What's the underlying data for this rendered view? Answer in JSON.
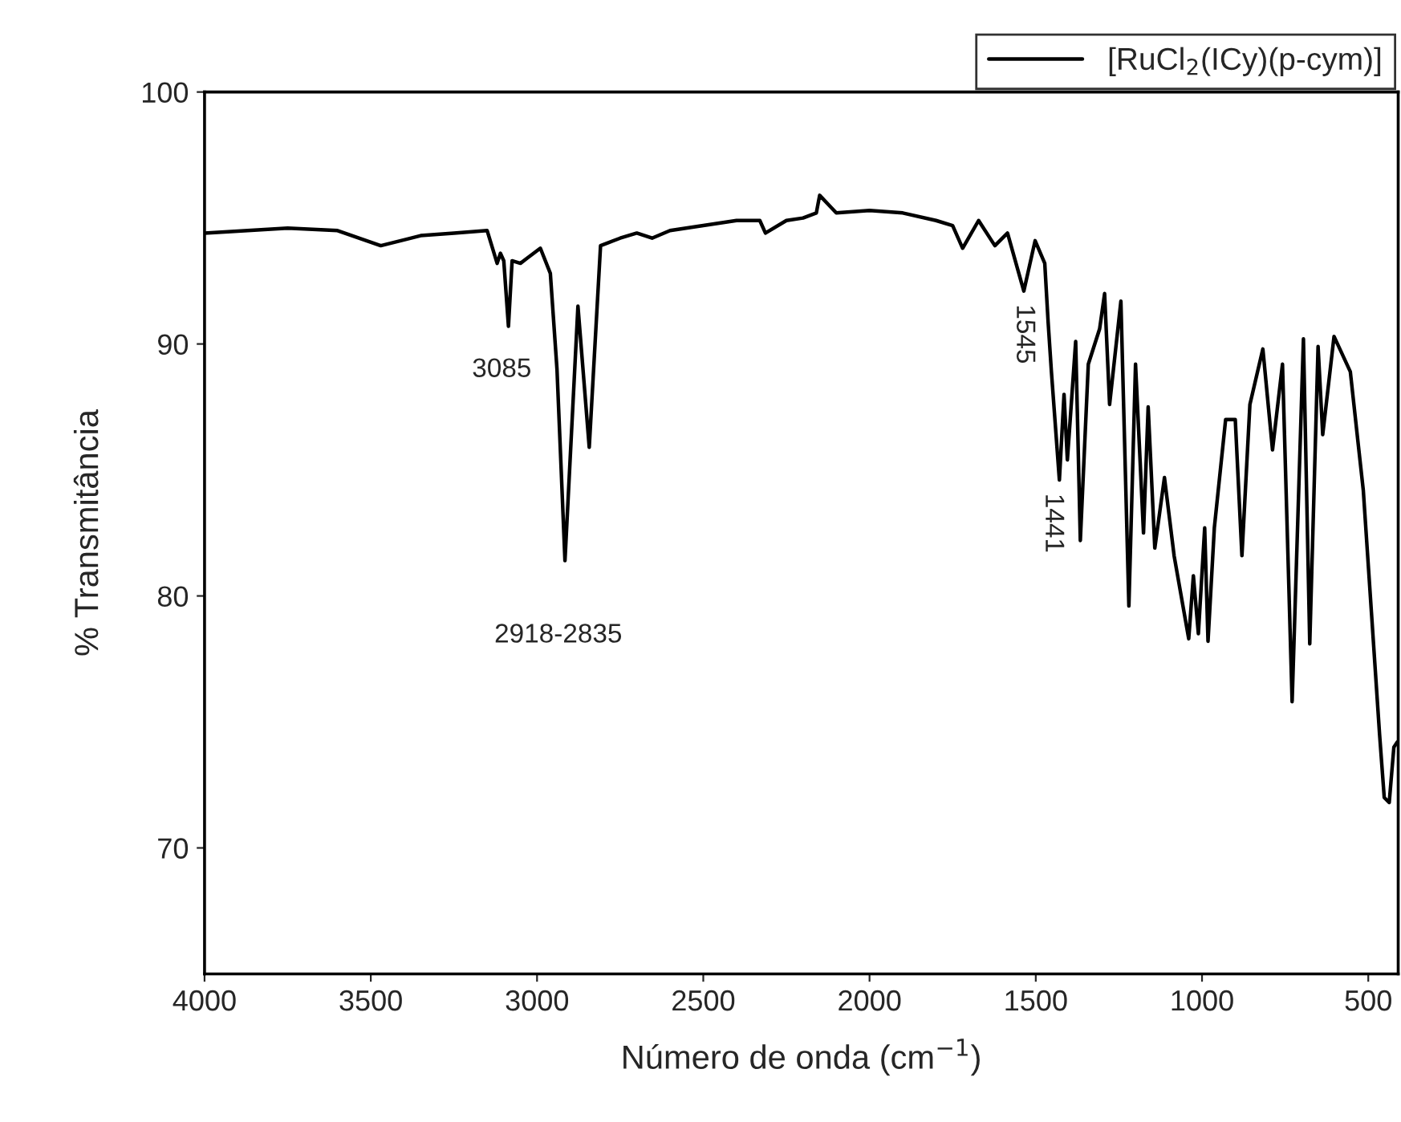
{
  "chart_data": {
    "type": "line",
    "xlabel": "Número de onda (cm$^{−1}$)",
    "ylabel": "% Transmitância",
    "xlim": [
      4000,
      410
    ],
    "ylim": [
      65,
      100
    ],
    "xticks": [
      4000,
      3500,
      3000,
      2500,
      2000,
      1500,
      1000,
      500
    ],
    "yticks": [
      70,
      80,
      90,
      100
    ],
    "grid": false,
    "legend": "top right",
    "line_style": "solid",
    "marker": "none",
    "series": [
      {
        "name": "[RuCl$_{2}$(ICy)(p-cym)]",
        "color": "#000000",
        "x": [
          4000,
          3750,
          3600,
          3470,
          3350,
          3250,
          3150,
          3120,
          3110,
          3100,
          3086,
          3075,
          3050,
          3030,
          2990,
          2960,
          2940,
          2916,
          2877,
          2843,
          2809,
          2750,
          2700,
          2654,
          2600,
          2500,
          2400,
          2330,
          2313,
          2250,
          2200,
          2160,
          2150,
          2100,
          2000,
          1900,
          1800,
          1750,
          1720,
          1672,
          1623,
          1585,
          1536,
          1502,
          1473,
          1463,
          1453,
          1429,
          1415,
          1405,
          1380,
          1366,
          1342,
          1308,
          1293,
          1278,
          1244,
          1220,
          1200,
          1176,
          1162,
          1142,
          1113,
          1084,
          1040,
          1026,
          1011,
          992,
          982,
          963,
          929,
          900,
          880,
          856,
          817,
          788,
          758,
          729,
          695,
          676,
          651,
          637,
          603,
          554,
          530,
          515,
          466,
          452,
          437,
          423,
          413
        ],
        "values": [
          94.4,
          94.6,
          94.5,
          93.9,
          94.3,
          94.4,
          94.5,
          93.2,
          93.6,
          93.3,
          90.7,
          93.3,
          93.2,
          93.4,
          93.8,
          92.8,
          89.0,
          81.4,
          91.5,
          85.9,
          93.9,
          94.2,
          94.4,
          94.2,
          94.5,
          94.7,
          94.9,
          94.9,
          94.4,
          94.9,
          95.0,
          95.2,
          95.9,
          95.2,
          95.3,
          95.2,
          94.9,
          94.7,
          93.8,
          94.9,
          93.9,
          94.4,
          92.1,
          94.1,
          93.2,
          90.9,
          88.9,
          84.6,
          88.0,
          85.4,
          90.1,
          82.2,
          89.2,
          90.6,
          92.0,
          87.6,
          91.7,
          79.6,
          89.2,
          82.5,
          87.5,
          81.9,
          84.7,
          81.6,
          78.3,
          80.8,
          78.5,
          82.7,
          78.2,
          82.7,
          87.0,
          87.0,
          81.6,
          87.6,
          89.8,
          85.8,
          89.2,
          75.8,
          90.2,
          78.1,
          89.9,
          86.4,
          90.3,
          88.9,
          86.0,
          84.2,
          74.5,
          72.0,
          71.8,
          74.0,
          74.2
        ]
      }
    ],
    "annotations": [
      {
        "text": "3085",
        "x": 3086,
        "y": 90.7
      },
      {
        "text": "2918-2835",
        "x": 2916,
        "y": 81.4
      },
      {
        "text": "1545",
        "x": 1536,
        "y": 92.1
      },
      {
        "text": "1441",
        "x": 1429,
        "y": 84.6
      }
    ]
  }
}
